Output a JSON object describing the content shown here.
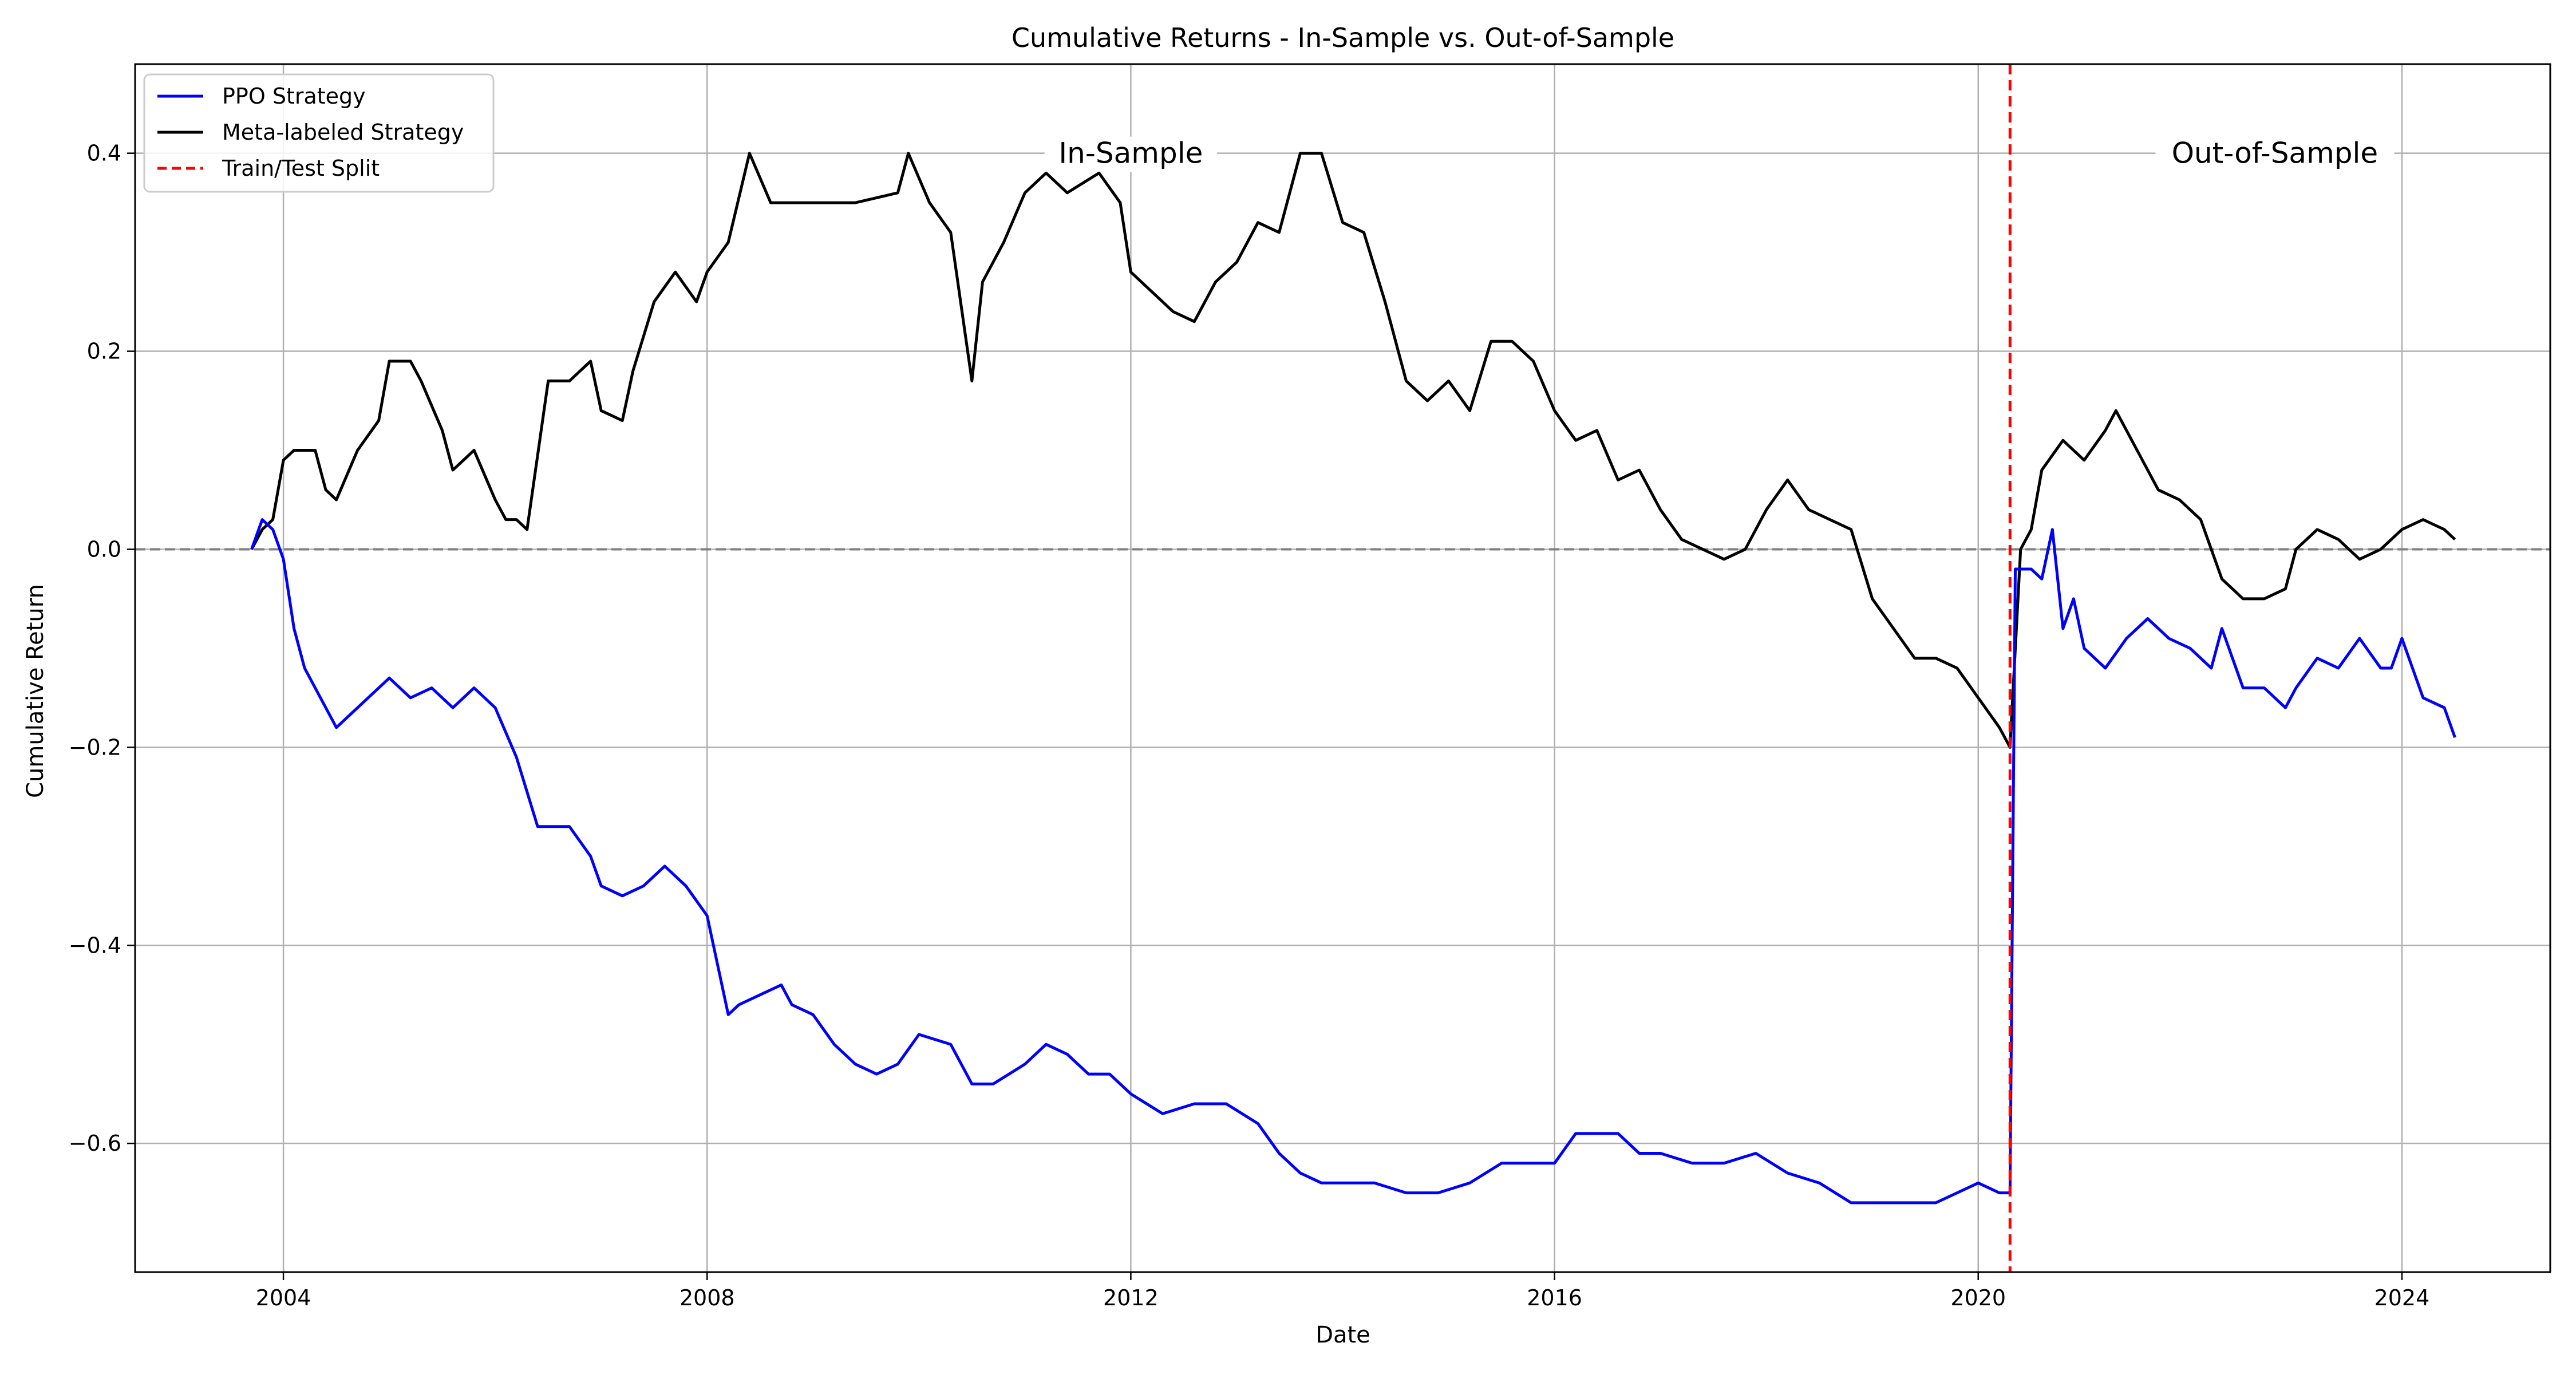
{
  "chart_data": {
    "type": "line",
    "title": "Cumulative Returns - In-Sample vs. Out-of-Sample",
    "xlabel": "Date",
    "ylabel": "Cumulative Return",
    "xlim": [
      2002.6,
      2025.4
    ],
    "ylim": [
      -0.73,
      0.49
    ],
    "x_ticks": [
      2004,
      2008,
      2012,
      2016,
      2020,
      2024
    ],
    "x_tick_labels": [
      "2004",
      "2008",
      "2012",
      "2016",
      "2020",
      "2024"
    ],
    "y_ticks": [
      -0.6,
      -0.4,
      -0.2,
      0.0,
      0.2,
      0.4
    ],
    "y_tick_labels": [
      "−0.6",
      "−0.4",
      "−0.2",
      "0.0",
      "0.2",
      "0.4"
    ],
    "grid": true,
    "legend_position": "top-left",
    "split": {
      "name": "Train/Test Split",
      "x": 2020.3,
      "color": "#ff0000",
      "style": "dashed"
    },
    "zero_line": {
      "y": 0.0,
      "color": "#808080",
      "style": "dashed"
    },
    "annotations": [
      {
        "text": "In-Sample",
        "x": 2012.0,
        "y": 0.4
      },
      {
        "text": "Out-of-Sample",
        "x": 2022.8,
        "y": 0.4
      }
    ],
    "series": [
      {
        "name": "PPO Strategy",
        "color": "#0000ff",
        "x": [
          2003.7,
          2003.8,
          2003.9,
          2004.0,
          2004.1,
          2004.2,
          2004.3,
          2004.4,
          2004.5,
          2004.6,
          2004.8,
          2005.0,
          2005.2,
          2005.4,
          2005.6,
          2005.8,
          2006.0,
          2006.2,
          2006.4,
          2006.5,
          2006.7,
          2006.9,
          2007.0,
          2007.2,
          2007.4,
          2007.6,
          2007.8,
          2008.0,
          2008.1,
          2008.2,
          2008.3,
          2008.5,
          2008.7,
          2008.8,
          2009.0,
          2009.2,
          2009.4,
          2009.6,
          2009.8,
          2010.0,
          2010.3,
          2010.5,
          2010.7,
          2011.0,
          2011.2,
          2011.4,
          2011.6,
          2011.8,
          2012.0,
          2012.3,
          2012.6,
          2012.9,
          2013.2,
          2013.4,
          2013.6,
          2013.8,
          2014.0,
          2014.3,
          2014.6,
          2014.9,
          2015.2,
          2015.5,
          2015.8,
          2016.0,
          2016.2,
          2016.4,
          2016.6,
          2016.8,
          2017.0,
          2017.3,
          2017.6,
          2017.9,
          2018.2,
          2018.5,
          2018.8,
          2019.0,
          2019.3,
          2019.6,
          2019.8,
          2020.0,
          2020.2,
          2020.3,
          2020.35,
          2020.5,
          2020.6,
          2020.7,
          2020.8,
          2020.9,
          2021.0,
          2021.2,
          2021.4,
          2021.6,
          2021.8,
          2022.0,
          2022.2,
          2022.3,
          2022.5,
          2022.7,
          2022.9,
          2023.0,
          2023.2,
          2023.4,
          2023.6,
          2023.8,
          2023.9,
          2024.0,
          2024.2,
          2024.4,
          2024.5
        ],
        "y": [
          0.0,
          0.03,
          0.02,
          -0.01,
          -0.08,
          -0.12,
          -0.14,
          -0.16,
          -0.18,
          -0.17,
          -0.15,
          -0.13,
          -0.15,
          -0.14,
          -0.16,
          -0.14,
          -0.16,
          -0.21,
          -0.28,
          -0.28,
          -0.28,
          -0.31,
          -0.34,
          -0.35,
          -0.34,
          -0.32,
          -0.34,
          -0.37,
          -0.42,
          -0.47,
          -0.46,
          -0.45,
          -0.44,
          -0.46,
          -0.47,
          -0.5,
          -0.52,
          -0.53,
          -0.52,
          -0.49,
          -0.5,
          -0.54,
          -0.54,
          -0.52,
          -0.5,
          -0.51,
          -0.53,
          -0.53,
          -0.55,
          -0.57,
          -0.56,
          -0.56,
          -0.58,
          -0.61,
          -0.63,
          -0.64,
          -0.64,
          -0.64,
          -0.65,
          -0.65,
          -0.64,
          -0.62,
          -0.62,
          -0.62,
          -0.59,
          -0.59,
          -0.59,
          -0.61,
          -0.61,
          -0.62,
          -0.62,
          -0.61,
          -0.63,
          -0.64,
          -0.66,
          -0.66,
          -0.66,
          -0.66,
          -0.65,
          -0.64,
          -0.65,
          -0.65,
          -0.02,
          -0.02,
          -0.03,
          0.02,
          -0.08,
          -0.05,
          -0.1,
          -0.12,
          -0.09,
          -0.07,
          -0.09,
          -0.1,
          -0.12,
          -0.08,
          -0.14,
          -0.14,
          -0.16,
          -0.14,
          -0.11,
          -0.12,
          -0.09,
          -0.12,
          -0.12,
          -0.09,
          -0.15,
          -0.16,
          -0.19
        ]
      },
      {
        "name": "Meta-labeled Strategy",
        "color": "#000000",
        "x": [
          2003.7,
          2003.8,
          2003.9,
          2004.0,
          2004.1,
          2004.3,
          2004.4,
          2004.5,
          2004.7,
          2004.9,
          2005.0,
          2005.2,
          2005.3,
          2005.5,
          2005.6,
          2005.8,
          2006.0,
          2006.1,
          2006.2,
          2006.3,
          2006.5,
          2006.7,
          2006.9,
          2007.0,
          2007.2,
          2007.3,
          2007.5,
          2007.7,
          2007.9,
          2008.0,
          2008.2,
          2008.4,
          2008.6,
          2009.0,
          2009.4,
          2009.8,
          2009.9,
          2010.1,
          2010.3,
          2010.5,
          2010.6,
          2010.8,
          2011.0,
          2011.2,
          2011.4,
          2011.7,
          2011.9,
          2012.0,
          2012.2,
          2012.4,
          2012.6,
          2012.8,
          2013.0,
          2013.2,
          2013.4,
          2013.6,
          2013.8,
          2014.0,
          2014.2,
          2014.4,
          2014.6,
          2014.8,
          2015.0,
          2015.2,
          2015.4,
          2015.6,
          2015.8,
          2016.0,
          2016.2,
          2016.4,
          2016.6,
          2016.8,
          2017.0,
          2017.2,
          2017.4,
          2017.6,
          2017.8,
          2018.0,
          2018.2,
          2018.4,
          2018.6,
          2018.8,
          2019.0,
          2019.2,
          2019.4,
          2019.6,
          2019.8,
          2020.0,
          2020.2,
          2020.3,
          2020.4,
          2020.5,
          2020.6,
          2020.8,
          2021.0,
          2021.2,
          2021.3,
          2021.5,
          2021.7,
          2021.9,
          2022.1,
          2022.3,
          2022.5,
          2022.7,
          2022.9,
          2023.0,
          2023.2,
          2023.4,
          2023.6,
          2023.8,
          2024.0,
          2024.2,
          2024.4,
          2024.5
        ],
        "y": [
          0.0,
          0.02,
          0.03,
          0.09,
          0.1,
          0.1,
          0.06,
          0.05,
          0.1,
          0.13,
          0.19,
          0.19,
          0.17,
          0.12,
          0.08,
          0.1,
          0.05,
          0.03,
          0.03,
          0.02,
          0.17,
          0.17,
          0.19,
          0.14,
          0.13,
          0.18,
          0.25,
          0.28,
          0.25,
          0.28,
          0.31,
          0.4,
          0.35,
          0.35,
          0.35,
          0.36,
          0.4,
          0.35,
          0.32,
          0.17,
          0.27,
          0.31,
          0.36,
          0.38,
          0.36,
          0.38,
          0.35,
          0.28,
          0.26,
          0.24,
          0.23,
          0.27,
          0.29,
          0.33,
          0.32,
          0.4,
          0.4,
          0.33,
          0.32,
          0.25,
          0.17,
          0.15,
          0.17,
          0.14,
          0.21,
          0.21,
          0.19,
          0.14,
          0.11,
          0.12,
          0.07,
          0.08,
          0.04,
          0.01,
          0.0,
          -0.01,
          0.0,
          0.04,
          0.07,
          0.04,
          0.03,
          0.02,
          -0.05,
          -0.08,
          -0.11,
          -0.11,
          -0.12,
          -0.15,
          -0.18,
          -0.2,
          0.0,
          0.02,
          0.08,
          0.11,
          0.09,
          0.12,
          0.14,
          0.1,
          0.06,
          0.05,
          0.03,
          -0.03,
          -0.05,
          -0.05,
          -0.04,
          0.0,
          0.02,
          0.01,
          -0.01,
          0.0,
          0.02,
          0.03,
          0.02,
          0.01
        ]
      }
    ]
  }
}
